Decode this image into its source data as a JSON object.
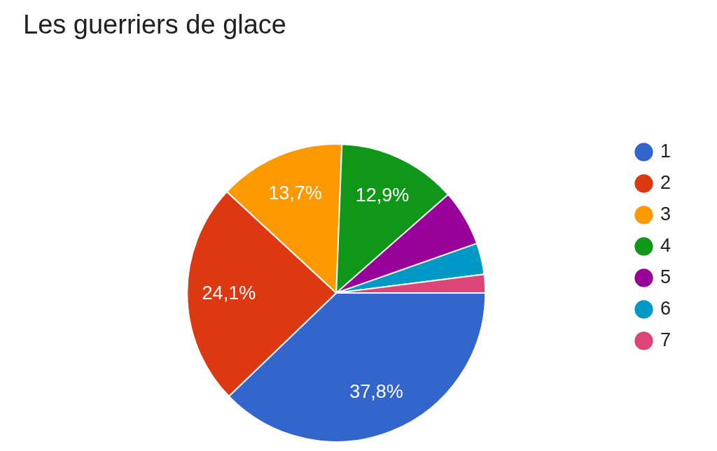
{
  "chart_data": {
    "type": "pie",
    "title": "Les guerriers de glace",
    "categories": [
      "1",
      "2",
      "3",
      "4",
      "5",
      "6",
      "7"
    ],
    "values": [
      37.8,
      24.1,
      13.7,
      12.9,
      6.1,
      3.4,
      2.0
    ],
    "colors": [
      "#3366cc",
      "#dc3912",
      "#ff9900",
      "#109618",
      "#990099",
      "#0099c6",
      "#dd4477"
    ],
    "value_labels": [
      "37,8%",
      "24,1%",
      "13,7%",
      "12,9%",
      null,
      null,
      null
    ],
    "legend": "right"
  }
}
